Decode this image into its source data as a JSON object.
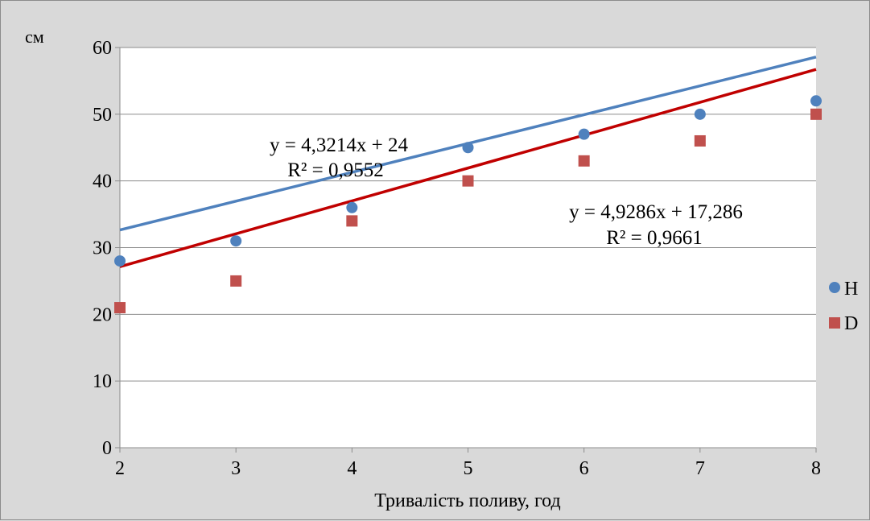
{
  "chart_data": {
    "type": "scatter",
    "xlabel": "Тривалість поливу, год",
    "ylabel": "см",
    "xlim": [
      2,
      8
    ],
    "ylim": [
      0,
      60
    ],
    "x_ticks": [
      "2",
      "3",
      "4",
      "5",
      "6",
      "7",
      "8"
    ],
    "y_ticks": [
      "0",
      "10",
      "20",
      "30",
      "40",
      "50",
      "60"
    ],
    "grid": "horizontal",
    "legend_position": "right",
    "series": [
      {
        "name": "H",
        "marker": "circle",
        "color": "#4f81bd",
        "trend_color": "#4f81bd",
        "x": [
          2,
          3,
          4,
          5,
          6,
          7,
          8
        ],
        "y": [
          28,
          31,
          36,
          45,
          47,
          50,
          52
        ],
        "trendline": {
          "slope": 4.3214,
          "intercept": 24
        },
        "equation": "y = 4,3214x + 24",
        "r2": "R² = 0,9552"
      },
      {
        "name": "D",
        "marker": "square",
        "color": "#c0504d",
        "trend_color": "#c00000",
        "x": [
          2,
          3,
          4,
          5,
          6,
          7,
          8
        ],
        "y": [
          21,
          25,
          34,
          40,
          43,
          46,
          50
        ],
        "trendline": {
          "slope": 4.9286,
          "intercept": 17.286
        },
        "equation": "y = 4,9286x + 17,286",
        "r2": "R² = 0,9661"
      }
    ]
  }
}
